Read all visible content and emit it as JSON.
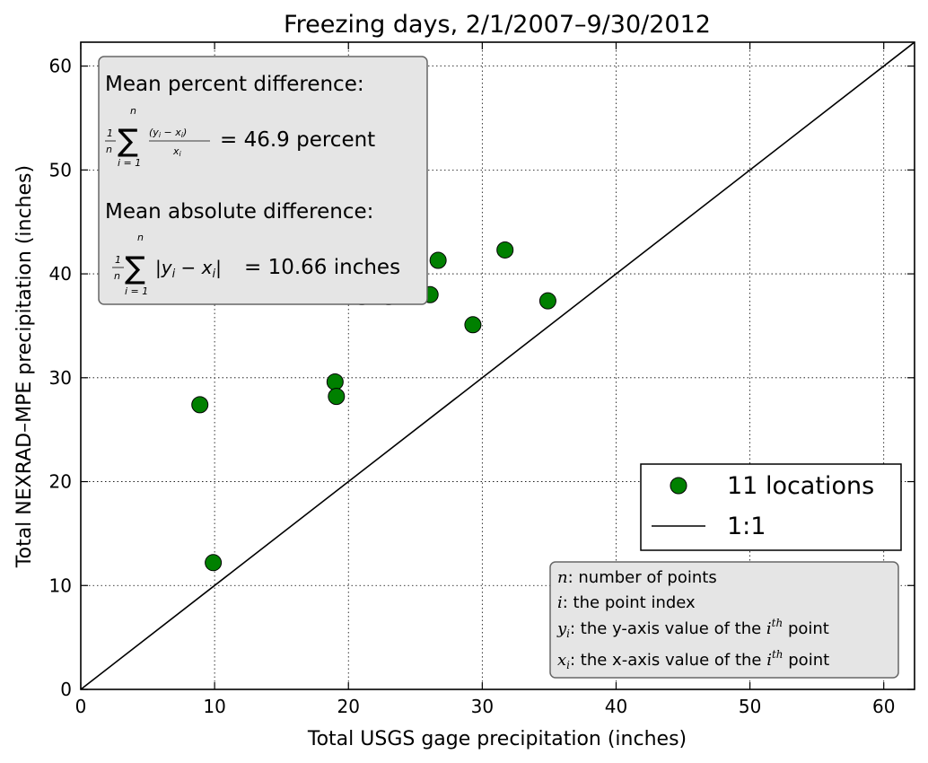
{
  "chart_data": {
    "type": "scatter",
    "title": "Freezing days, 2/1/2007–9/30/2012",
    "xlabel": "Total USGS gage precipitation (inches)",
    "ylabel": "Total NEXRAD–MPE precipitation (inches)",
    "xlim": [
      0,
      62.3
    ],
    "ylim": [
      0,
      62.3
    ],
    "xticks": [
      0,
      10,
      20,
      30,
      40,
      50,
      60
    ],
    "yticks": [
      0,
      10,
      20,
      30,
      40,
      50,
      60
    ],
    "grid": true,
    "legend_position": "lower-right",
    "series": [
      {
        "name": "11 locations",
        "color": "#008000",
        "points": [
          {
            "x": 8.9,
            "y": 27.4
          },
          {
            "x": 9.9,
            "y": 12.2
          },
          {
            "x": 19.0,
            "y": 29.6
          },
          {
            "x": 19.1,
            "y": 28.2
          },
          {
            "x": 21.0,
            "y": 37.8
          },
          {
            "x": 23.0,
            "y": 37.8
          },
          {
            "x": 26.1,
            "y": 38.0
          },
          {
            "x": 26.7,
            "y": 41.3
          },
          {
            "x": 29.3,
            "y": 35.1
          },
          {
            "x": 31.7,
            "y": 42.3
          },
          {
            "x": 34.9,
            "y": 37.4
          }
        ]
      }
    ],
    "reference_line": {
      "name": "1:1",
      "from": [
        0,
        0
      ],
      "to": [
        62.3,
        62.3
      ],
      "color": "#000000"
    },
    "stats_box": {
      "mean_percent_label": "Mean percent difference:",
      "mean_percent_value": "= 46.9 percent",
      "mean_abs_label": "Mean absolute difference:",
      "mean_abs_value": "= 10.66 inches"
    },
    "notes_box": {
      "lines": [
        {
          "sym": "n",
          "text": ": number of points"
        },
        {
          "sym": "i",
          "text": ": the point index"
        },
        {
          "sym": "y",
          "sub": "i",
          "text": ": the y-axis value of the ",
          "tail": " point"
        },
        {
          "sym": "x",
          "sub": "i",
          "text": ": the x-axis value of the ",
          "tail": " point"
        }
      ]
    }
  }
}
